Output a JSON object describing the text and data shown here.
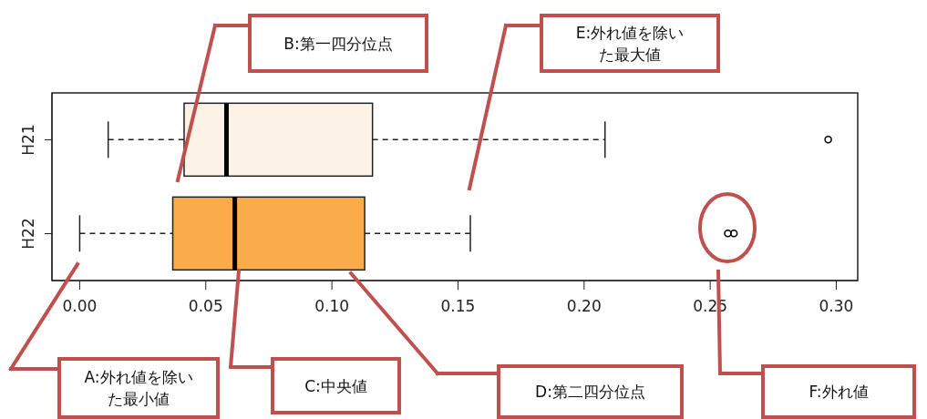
{
  "chart_data": {
    "type": "box",
    "orientation": "horizontal",
    "categories": [
      "H21",
      "H22"
    ],
    "colors": [
      "#fdf2e6",
      "#fbac4a"
    ],
    "boxes": [
      {
        "low": 0.0113,
        "q1": 0.0414,
        "median": 0.0582,
        "q3": 0.1161,
        "high": 0.2083,
        "outliers": [
          0.2968
        ]
      },
      {
        "low": 0.0,
        "q1": 0.0369,
        "median": 0.0615,
        "q3": 0.113,
        "high": 0.1549,
        "outliers": [
          0.257,
          0.2594
        ]
      }
    ],
    "xlim": [
      -0.011,
      0.3085
    ],
    "xticks": [
      {
        "value": 0,
        "label": "0.00"
      },
      {
        "value": 0.05,
        "label": "0.05"
      },
      {
        "value": 0.1,
        "label": "0.10"
      },
      {
        "value": 0.15,
        "label": "0.15"
      },
      {
        "value": 0.2,
        "label": "0.20"
      },
      {
        "value": 0.25,
        "label": "0.25"
      },
      {
        "value": 0.3,
        "label": "0.30"
      }
    ],
    "grid": false,
    "annotations": [
      "A:外れ値を除いた最小値",
      "B:第一四分位点",
      "C:中央値",
      "D:第二四分位点",
      "E:外れ値を除いた最大値",
      "F:外れ値"
    ]
  }
}
